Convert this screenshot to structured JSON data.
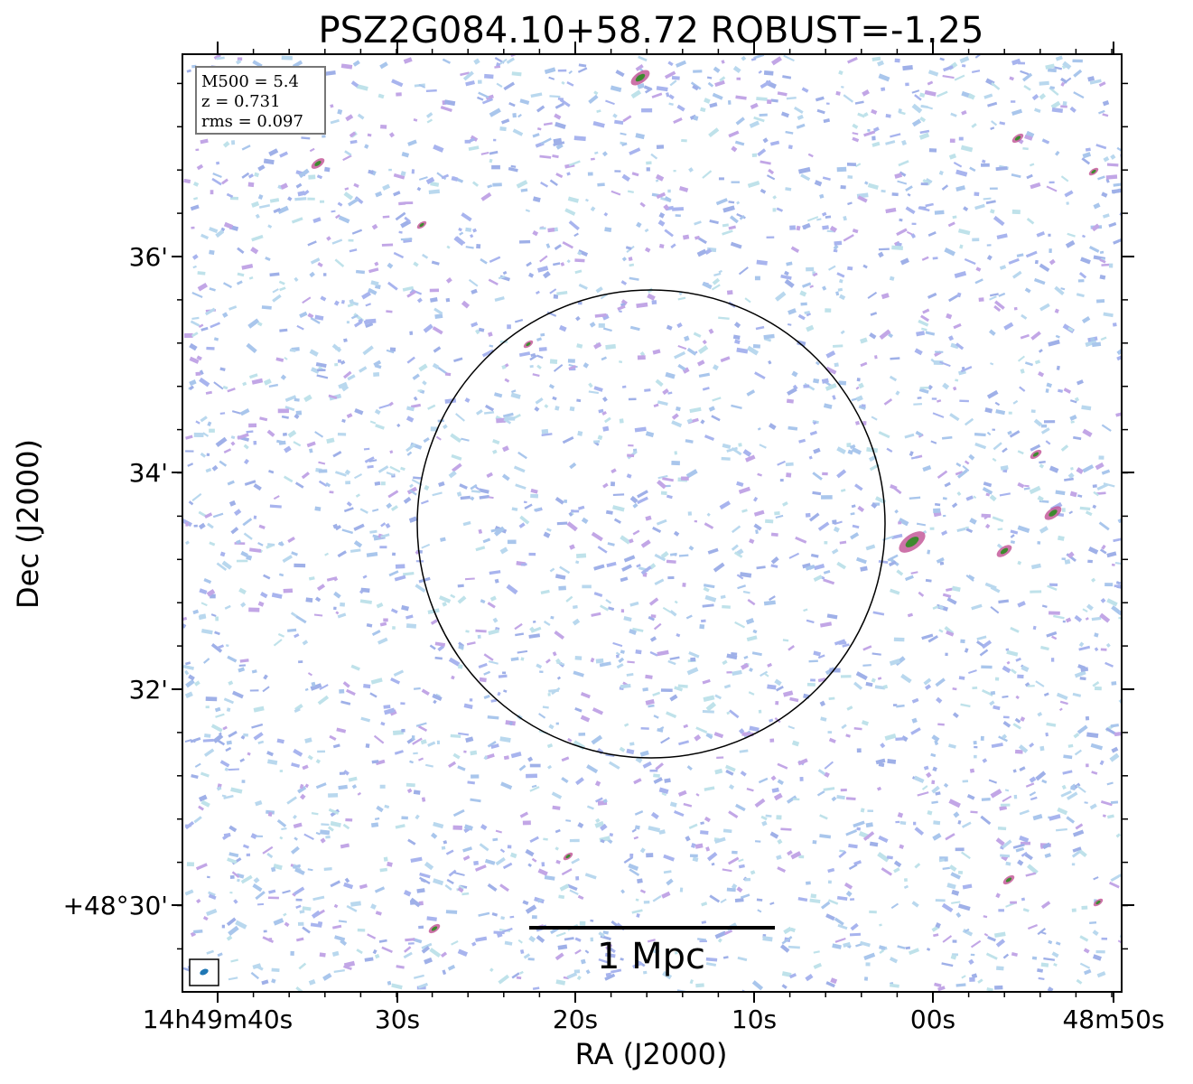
{
  "figure": {
    "title": "PSZ2G084.10+58.72 ROBUST=-1.25",
    "xlabel": "RA (J2000)",
    "ylabel": "Dec (J2000)",
    "xtick_labels": [
      "14h49m40s",
      "30s",
      "20s",
      "10s",
      "00s",
      "48m50s"
    ],
    "ytick_labels": [
      "36'",
      "34'",
      "32'",
      "+48°30'"
    ],
    "info": [
      "M500 = 5.4",
      "z = 0.731",
      "rms = 0.097"
    ],
    "scale_bar": "1 Mpc"
  }
}
